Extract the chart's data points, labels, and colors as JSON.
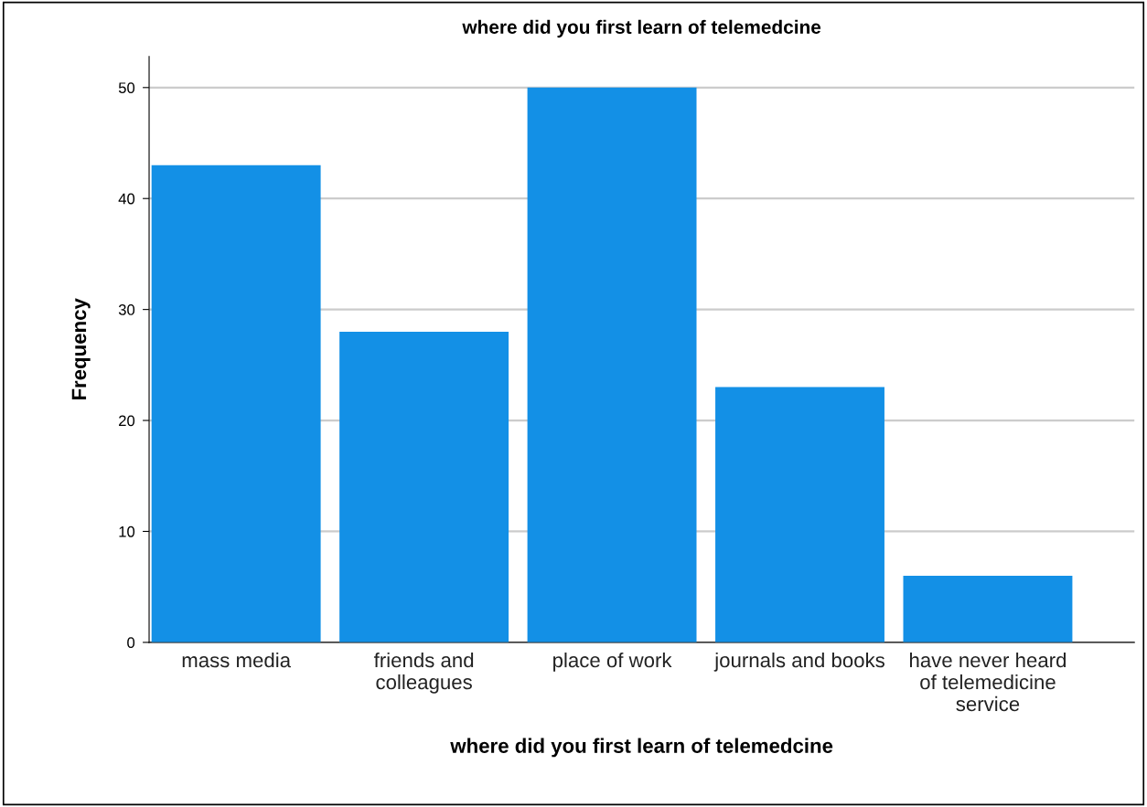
{
  "chart_data": {
    "type": "bar",
    "title": "where did you first learn of telemedcine",
    "xlabel": "where did you first learn of telemedcine",
    "ylabel": "Frequency",
    "categories": [
      "mass media",
      "friends and\ncolleagues",
      "place of work",
      "journals and books",
      "have never heard\nof telemedicine\nservice"
    ],
    "values": [
      43,
      28,
      50,
      23,
      6
    ],
    "color": "#1390e6",
    "ylim": [
      0,
      52.8
    ],
    "yticks": [
      0,
      10,
      20,
      30,
      40,
      50
    ],
    "grid": "y"
  }
}
